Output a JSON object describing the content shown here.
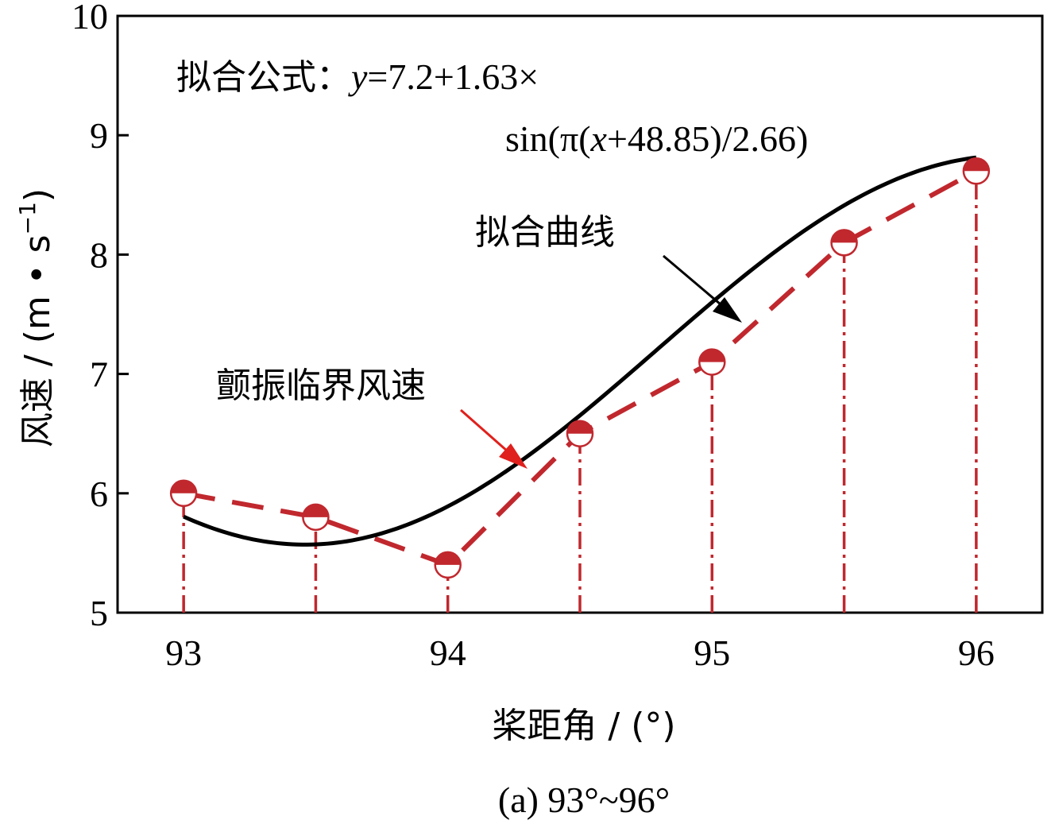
{
  "chart_data": {
    "type": "line",
    "caption": "(a) 93°~96°",
    "xlabel": "桨距角 / (°)",
    "ylabel_main": "风速 / (m • s",
    "ylabel_sup": "−1",
    "ylabel_close": ")",
    "xlim": [
      92.75,
      96.25
    ],
    "ylim": [
      5,
      10
    ],
    "xticks": [
      93,
      94,
      95,
      96
    ],
    "yticks": [
      5,
      6,
      7,
      8,
      9,
      10
    ],
    "grid": false,
    "series": [
      {
        "name": "颤振临界风速",
        "x": [
          93,
          93.5,
          94,
          94.5,
          95,
          95.5,
          96
        ],
        "y": [
          6.0,
          5.8,
          5.4,
          6.5,
          7.1,
          8.1,
          8.7
        ],
        "color": "#c0282e",
        "style": "dashed-with-markers"
      },
      {
        "name": "拟合曲线",
        "formula": {
          "a": 7.2,
          "b": 1.63,
          "c": 48.85,
          "d": 2.66
        },
        "x_range": [
          93,
          96
        ],
        "color": "#000000",
        "style": "solid"
      }
    ],
    "formula_label": {
      "prefix": "拟合公式：",
      "var": "y",
      "rest1": "=7.2+1.63×",
      "line2_a": "sin(π(",
      "line2_var": "x",
      "line2_b": "+48.85)/2.66)"
    },
    "annotations": [
      {
        "text": "拟合曲线",
        "target": "fit"
      },
      {
        "text": "颤振临界风速",
        "target": "critical"
      }
    ]
  }
}
